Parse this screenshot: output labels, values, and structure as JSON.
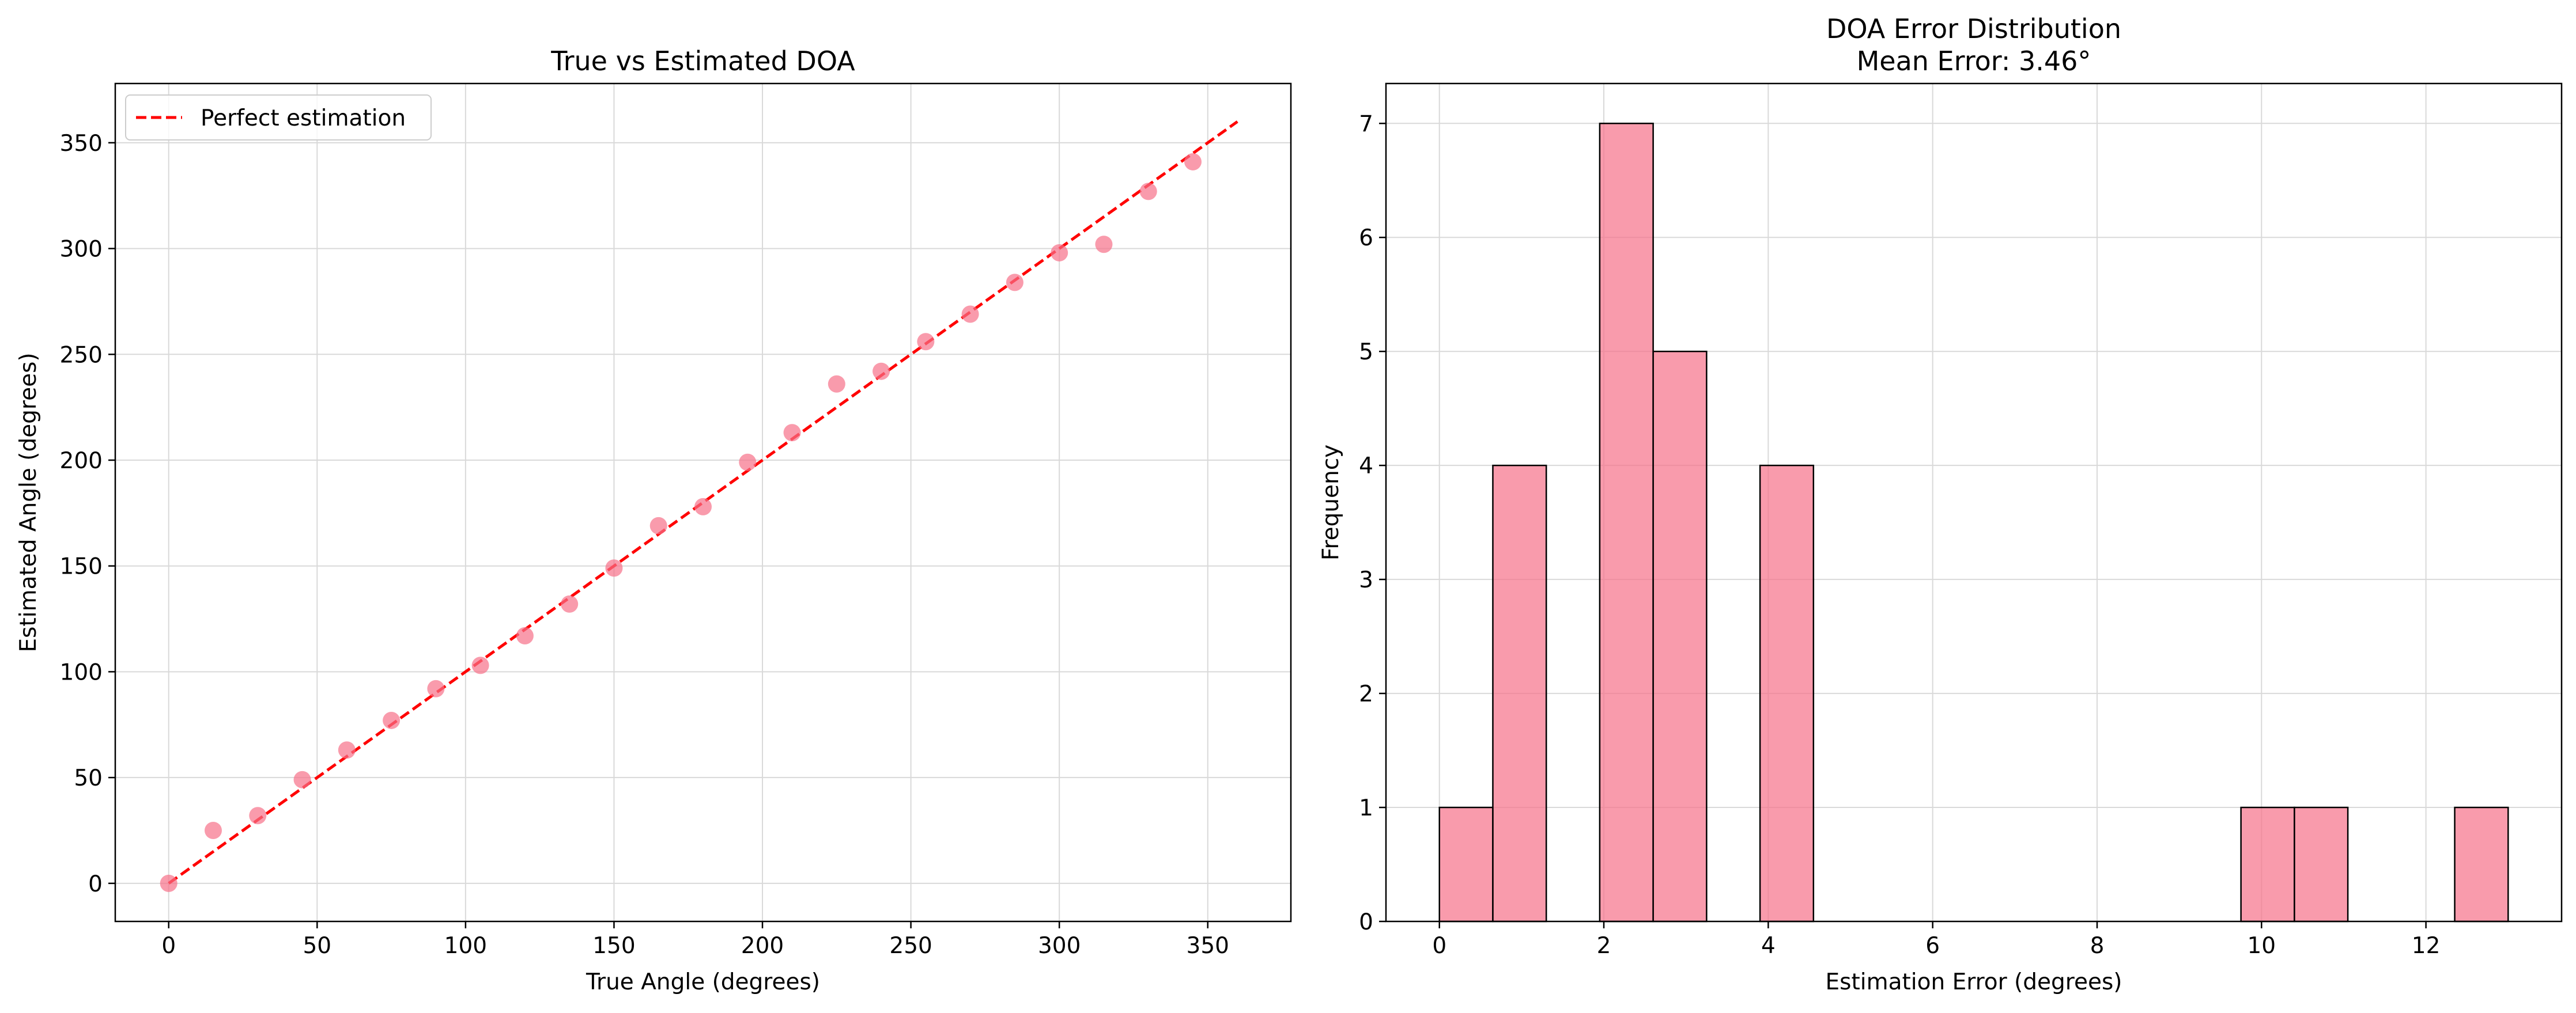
{
  "colors": {
    "points": "#f77189",
    "bars": "#f77189",
    "bar_edge": "#000000",
    "reference_line": "#ff0000",
    "grid": "#d9d9d9"
  },
  "chart_data": [
    {
      "type": "scatter",
      "title": "True vs Estimated DOA",
      "xlabel": "True Angle (degrees)",
      "ylabel": "Estimated Angle (degrees)",
      "xlim": [
        -18,
        378
      ],
      "ylim": [
        -18,
        378
      ],
      "xticks": [
        0,
        50,
        100,
        150,
        200,
        250,
        300,
        350
      ],
      "yticks": [
        0,
        50,
        100,
        150,
        200,
        250,
        300,
        350
      ],
      "grid": true,
      "legend_position": "top-left",
      "series": [
        {
          "name": "",
          "kind": "points",
          "x": [
            0,
            15,
            30,
            45,
            60,
            75,
            90,
            105,
            120,
            135,
            150,
            165,
            180,
            195,
            210,
            225,
            240,
            255,
            270,
            285,
            300,
            315,
            330,
            345
          ],
          "y": [
            0,
            25,
            32,
            49,
            63,
            77,
            92,
            103,
            117,
            132,
            149,
            169,
            178,
            199,
            213,
            236,
            242,
            256,
            269,
            284,
            298,
            302,
            327,
            341
          ]
        },
        {
          "name": "Perfect estimation",
          "kind": "dashed-line",
          "x": [
            0,
            360
          ],
          "y": [
            0,
            360
          ]
        }
      ]
    },
    {
      "type": "bar",
      "title": "DOA Error Distribution",
      "subtitle": "Mean Error: 3.46°",
      "xlabel": "Estimation Error (degrees)",
      "ylabel": "Frequency",
      "xlim": [
        -0.65,
        13.65
      ],
      "ylim": [
        0,
        7.35
      ],
      "xticks": [
        0,
        2,
        4,
        6,
        8,
        10,
        12
      ],
      "yticks": [
        0,
        1,
        2,
        3,
        4,
        5,
        6,
        7
      ],
      "grid": true,
      "bin_edges": [
        0,
        0.65,
        1.3,
        1.95,
        2.6,
        3.25,
        3.9,
        4.55,
        5.2,
        5.85,
        6.5,
        7.15,
        7.8,
        8.45,
        9.1,
        9.75,
        10.4,
        11.05,
        11.7,
        12.35,
        13.0
      ],
      "values": [
        1,
        4,
        0,
        7,
        5,
        0,
        4,
        0,
        0,
        0,
        0,
        0,
        0,
        0,
        0,
        1,
        1,
        0,
        0,
        1
      ]
    }
  ]
}
